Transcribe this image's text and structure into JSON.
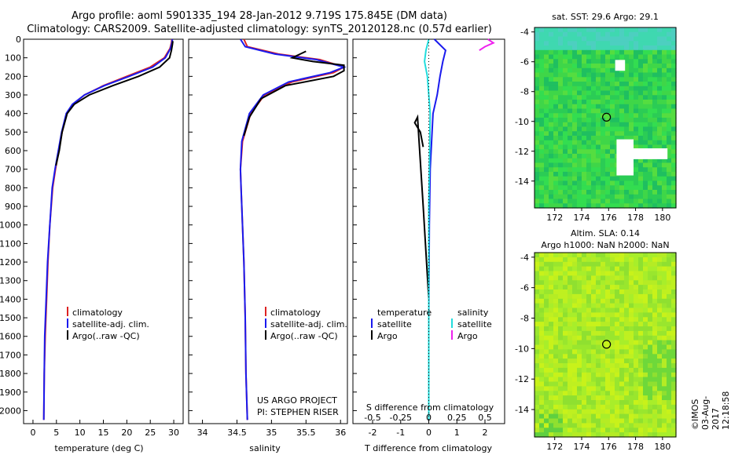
{
  "header": {
    "line1": "Argo profile: aoml 5901335_194 28-Jan-2012 9.719S 175.845E (DM data)",
    "line2": "Climatology: CARS2009. Satellite-adjusted climatology: synTS_20120128.nc (0.57d earlier)"
  },
  "colors": {
    "climatology": "#dd2222",
    "satellite": "#1a1aee",
    "argo": "#000000",
    "salinity_satellite": "#22dddd",
    "salinity_argo": "#ee22ee"
  },
  "chart_data": [
    {
      "type": "line",
      "xlabel": "temperature (deg C)",
      "xticks": [
        "0",
        "5",
        "10",
        "15",
        "20",
        "25",
        "30"
      ],
      "xlim": [
        -2,
        32
      ],
      "ylim": [
        2070,
        0
      ],
      "yticks": [
        "0",
        "100",
        "200",
        "300",
        "400",
        "500",
        "600",
        "700",
        "800",
        "900",
        "1000",
        "1100",
        "1200",
        "1300",
        "1400",
        "1500",
        "1600",
        "1700",
        "1800",
        "1900",
        "2000"
      ],
      "legend": [
        "climatology",
        "satellite-adj. clim.",
        "Argo(..raw -QC)"
      ],
      "series": [
        {
          "key": "climatology",
          "x": [
            29.6,
            29.5,
            29.2,
            28,
            25,
            20,
            15,
            11,
            8.5,
            7.2,
            6.2,
            5.5,
            4.8,
            4.2,
            3.6,
            3.2,
            2.9,
            2.6,
            2.4,
            2.3
          ],
          "y": [
            0,
            20,
            50,
            100,
            150,
            200,
            250,
            300,
            350,
            400,
            500,
            600,
            700,
            800,
            1000,
            1200,
            1400,
            1600,
            1800,
            2050
          ]
        },
        {
          "key": "satellite",
          "x": [
            29.7,
            29.6,
            29.3,
            28.2,
            25.5,
            20.5,
            15.2,
            11,
            8.4,
            7.1,
            6.1,
            5.4,
            4.7,
            4.1,
            3.6,
            3.1,
            2.8,
            2.5,
            2.4,
            2.3
          ],
          "y": [
            0,
            20,
            50,
            100,
            150,
            200,
            250,
            300,
            350,
            400,
            500,
            600,
            700,
            800,
            1000,
            1200,
            1400,
            1600,
            1800,
            2050
          ]
        },
        {
          "key": "argo",
          "x": [
            29.8,
            29.7,
            29.5,
            29.1,
            27,
            22.5,
            17,
            12,
            8.8,
            7.3,
            6.2,
            5.6,
            4.9
          ],
          "y": [
            10,
            30,
            60,
            100,
            150,
            200,
            250,
            300,
            350,
            400,
            500,
            600,
            680
          ]
        }
      ]
    },
    {
      "type": "line",
      "xlabel": "salinity",
      "xticks": [
        "34",
        "34.5",
        "35",
        "35.5",
        "36"
      ],
      "xlim": [
        33.8,
        36.1
      ],
      "ylim": [
        2070,
        0
      ],
      "legend": [
        "climatology",
        "satellite-adj. clim.",
        "Argo(..raw -QC)"
      ],
      "series": [
        {
          "key": "climatology",
          "x": [
            34.6,
            34.65,
            35.1,
            35.7,
            36.05,
            35.9,
            35.3,
            34.9,
            34.7,
            34.58,
            34.55,
            34.56,
            34.58,
            34.6,
            34.62,
            34.63,
            34.65
          ],
          "y": [
            0,
            40,
            80,
            110,
            150,
            180,
            230,
            300,
            400,
            550,
            700,
            800,
            1000,
            1200,
            1500,
            1800,
            2050
          ]
        },
        {
          "key": "satellite",
          "x": [
            34.55,
            34.62,
            35.05,
            35.65,
            36.05,
            35.85,
            35.25,
            34.88,
            34.68,
            34.57,
            34.55,
            34.56,
            34.58,
            34.6,
            34.62,
            34.63,
            34.65
          ],
          "y": [
            0,
            40,
            80,
            110,
            150,
            180,
            230,
            300,
            400,
            550,
            700,
            800,
            1000,
            1200,
            1500,
            1800,
            2050
          ]
        },
        {
          "key": "argo",
          "x": [
            35.5,
            35.3,
            35.6,
            36.05,
            36.05,
            35.9,
            35.2,
            34.85,
            34.68,
            34.6
          ],
          "y": [
            65,
            100,
            120,
            140,
            170,
            200,
            250,
            320,
            420,
            520
          ]
        }
      ],
      "annotation": [
        "US ARGO PROJECT",
        "PI: STEPHEN RISER"
      ]
    },
    {
      "type": "line",
      "xlabel": "T difference from climatology",
      "xticks": [
        "-2",
        "-1",
        "0",
        "1",
        "2"
      ],
      "top_label": "S difference from climatology",
      "top_ticks": [
        "-0.5",
        "-0.25",
        "0",
        "0.25",
        "0.5"
      ],
      "xlim": [
        -2.7,
        2.7
      ],
      "ylim": [
        2070,
        0
      ],
      "legend_temperature": {
        "title": "temperature",
        "items": [
          "satellite",
          "Argo"
        ]
      },
      "legend_salinity": {
        "title": "salinity",
        "items": [
          "satellite",
          "Argo"
        ]
      },
      "series": [
        {
          "key": "satellite_T",
          "x": [
            0.2,
            0.6,
            0.5,
            0.4,
            0.3,
            0.15,
            0.1,
            0.05,
            0.02,
            0,
            0
          ],
          "y": [
            0,
            60,
            120,
            200,
            300,
            400,
            550,
            700,
            1000,
            1500,
            2050
          ]
        },
        {
          "key": "argo_T",
          "x": [
            -0.2,
            -0.3,
            -0.5,
            -0.4,
            -0.2,
            0,
            0
          ],
          "y": [
            580,
            500,
            450,
            420,
            900,
            1400,
            1500
          ]
        },
        {
          "key": "satellite_S",
          "x": [
            0,
            -0.1,
            -0.15,
            -0.05,
            0.05,
            0,
            0
          ],
          "y": [
            0,
            60,
            120,
            200,
            400,
            900,
            2050
          ]
        },
        {
          "key": "argo_S",
          "x": [
            2.1,
            2.3,
            2.0,
            1.8
          ],
          "y": [
            0,
            20,
            40,
            60
          ]
        }
      ]
    },
    {
      "type": "heatmap",
      "title": "sat. SST: 29.6 Argo: 29.1",
      "xticks": [
        "172",
        "174",
        "176",
        "178",
        "180"
      ],
      "yticks": [
        "-4",
        "-6",
        "-8",
        "-10",
        "-12",
        "-14"
      ],
      "xlim": [
        170.5,
        181
      ],
      "ylim": [
        -15.8,
        -3.7
      ],
      "argo_position": {
        "lon": 175.845,
        "lat": -9.719
      }
    },
    {
      "type": "heatmap",
      "title": "Altim. SLA: 0.14",
      "subtitle": "Argo h1000: NaN h2000: NaN",
      "xticks": [
        "172",
        "174",
        "176",
        "178",
        "180"
      ],
      "yticks": [
        "-4",
        "-6",
        "-8",
        "-10",
        "-12",
        "-14"
      ],
      "xlim": [
        170.5,
        181
      ],
      "ylim": [
        -15.8,
        -3.7
      ],
      "argo_position": {
        "lon": 175.845,
        "lat": -9.719
      }
    }
  ],
  "footer": {
    "stamp": "©IMOS 03-Aug-2017 12:18:58"
  }
}
